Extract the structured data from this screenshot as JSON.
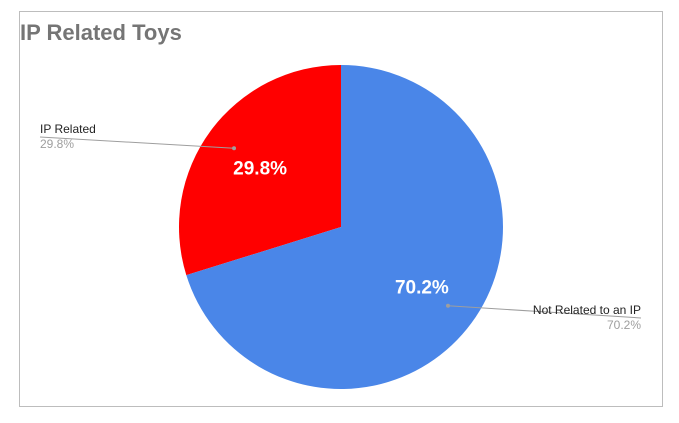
{
  "chart_data": {
    "type": "pie",
    "title": "IP Related Toys",
    "slices": [
      {
        "name": "IP Related",
        "value": 29.8,
        "label": "29.8%",
        "color": "#ff0000"
      },
      {
        "name": "Not Related to an IP",
        "value": 70.2,
        "label": "70.2%",
        "color": "#4a86e8"
      }
    ],
    "legend": "callout labels beside slices",
    "start_angle_deg": 0,
    "direction": "counterclockwise"
  }
}
